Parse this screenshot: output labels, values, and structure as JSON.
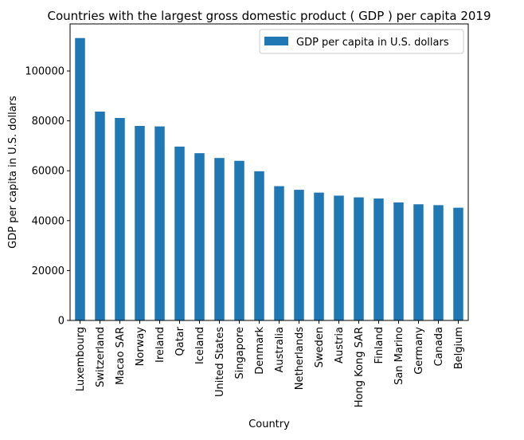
{
  "chart_data": {
    "type": "bar",
    "title": "Countries with the largest gross domestic product ( GDP ) per capita 2019",
    "xlabel": "Country",
    "ylabel": "GDP per capita in U.S. dollars",
    "categories": [
      "Luxembourg",
      "Switzerland",
      "Macao SAR",
      "Norway",
      "Ireland",
      "Qatar",
      "Iceland",
      "United States",
      "Singapore",
      "Denmark",
      "Australia",
      "Netherlands",
      "Sweden",
      "Austria",
      "Hong Kong SAR",
      "Finland",
      "San Marino",
      "Germany",
      "Canada",
      "Belgium"
    ],
    "series": [
      {
        "name": "GDP per capita in U.S. dollars",
        "color": "#1f77b4",
        "values": [
          113196,
          83716,
          81151,
          77975,
          77771,
          69688,
          67037,
          65112,
          63987,
          59795,
          53825,
          52368,
          51241,
          50023,
          49334,
          48868,
          47302,
          46564,
          46213,
          45176
        ]
      }
    ],
    "yticks": [
      0,
      20000,
      40000,
      60000,
      80000,
      100000
    ],
    "ylim": [
      0,
      118860
    ],
    "grid": false,
    "legend_position": "top-right"
  }
}
